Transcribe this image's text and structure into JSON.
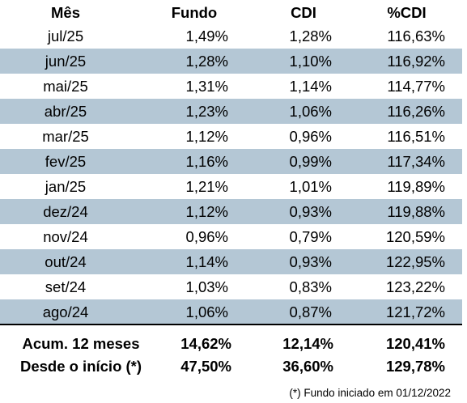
{
  "table": {
    "headers": {
      "mes": "Mês",
      "fundo": "Fundo",
      "cdi": "CDI",
      "pct_cdi": "%CDI"
    },
    "rows": [
      {
        "mes": "jul/25",
        "fundo": "1,49%",
        "cdi": "1,28%",
        "pct_cdi": "116,63%"
      },
      {
        "mes": "jun/25",
        "fundo": "1,28%",
        "cdi": "1,10%",
        "pct_cdi": "116,92%"
      },
      {
        "mes": "mai/25",
        "fundo": "1,31%",
        "cdi": "1,14%",
        "pct_cdi": "114,77%"
      },
      {
        "mes": "abr/25",
        "fundo": "1,23%",
        "cdi": "1,06%",
        "pct_cdi": "116,26%"
      },
      {
        "mes": "mar/25",
        "fundo": "1,12%",
        "cdi": "0,96%",
        "pct_cdi": "116,51%"
      },
      {
        "mes": "fev/25",
        "fundo": "1,16%",
        "cdi": "0,99%",
        "pct_cdi": "117,34%"
      },
      {
        "mes": "jan/25",
        "fundo": "1,21%",
        "cdi": "1,01%",
        "pct_cdi": "119,89%"
      },
      {
        "mes": "dez/24",
        "fundo": "1,12%",
        "cdi": "0,93%",
        "pct_cdi": "119,88%"
      },
      {
        "mes": "nov/24",
        "fundo": "0,96%",
        "cdi": "0,79%",
        "pct_cdi": "120,59%"
      },
      {
        "mes": "out/24",
        "fundo": "1,14%",
        "cdi": "0,93%",
        "pct_cdi": "122,95%"
      },
      {
        "mes": "set/24",
        "fundo": "1,03%",
        "cdi": "0,83%",
        "pct_cdi": "123,22%"
      },
      {
        "mes": "ago/24",
        "fundo": "1,06%",
        "cdi": "0,87%",
        "pct_cdi": "121,72%"
      }
    ],
    "totals": [
      {
        "label": "Acum. 12 meses",
        "fundo": "14,62%",
        "cdi": "12,14%",
        "pct_cdi": "120,41%"
      },
      {
        "label": "Desde o início (*)",
        "fundo": "47,50%",
        "cdi": "36,60%",
        "pct_cdi": "129,78%"
      }
    ]
  },
  "colors": {
    "row_shade": "#b4c7d5",
    "text": "#000000"
  },
  "footnote": "(*) Fundo iniciado em 01/12/2022"
}
